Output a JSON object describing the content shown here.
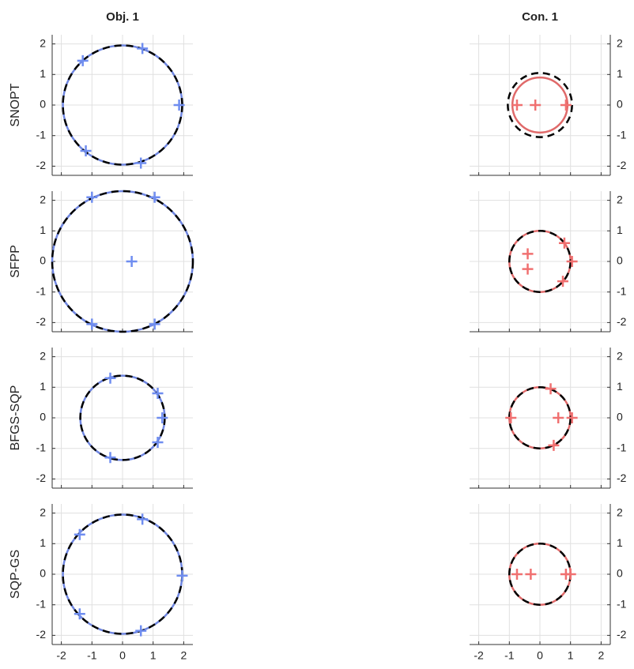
{
  "chart_data": [
    {
      "type": "scatter",
      "title": "Obj. 1",
      "ylabel": "SNOPT",
      "color": "#6f86e0",
      "marker_color": "#6f8df0",
      "x": [
        -1.3,
        0.65,
        1.85,
        -1.2,
        0.6
      ],
      "y": [
        1.45,
        1.85,
        0,
        -1.5,
        -1.9
      ],
      "contour_radius": 1.95,
      "boundary_radius": 1.95,
      "xlim": [
        -2.3,
        2.3
      ],
      "ylim": [
        -2.3,
        2.3
      ],
      "xticks": [
        -2,
        -1,
        0,
        1,
        2
      ],
      "yticks": [
        -2,
        -1,
        0,
        1,
        2
      ],
      "grid": true,
      "y_axis_side": "left",
      "x_tick_labels": false
    },
    {
      "type": "scatter",
      "title": "Con. 1",
      "color": "#e06a6a",
      "marker_color": "#f07070",
      "x": [
        -0.75,
        -0.15,
        0.85
      ],
      "y": [
        0,
        0,
        0
      ],
      "contour_radius": 0.9,
      "boundary_radius": 1.05,
      "xlim": [
        -2.3,
        2.3
      ],
      "ylim": [
        -2.3,
        2.3
      ],
      "xticks": [
        -2,
        -1,
        0,
        1,
        2
      ],
      "yticks": [
        -2,
        -1,
        0,
        1,
        2
      ],
      "grid": true,
      "y_axis_side": "right",
      "x_tick_labels": false
    },
    {
      "type": "scatter",
      "ylabel": "SFPP",
      "color": "#6f86e0",
      "marker_color": "#6f8df0",
      "x": [
        -1,
        1.05,
        0.3,
        -1,
        1.05
      ],
      "y": [
        2.1,
        2.1,
        0,
        -2.05,
        -2.05
      ],
      "contour_radius": 2.3,
      "boundary_radius": 2.3,
      "xlim": [
        -2.3,
        2.3
      ],
      "ylim": [
        -2.3,
        2.3
      ],
      "xticks": [
        -2,
        -1,
        0,
        1,
        2
      ],
      "yticks": [
        -2,
        -1,
        0,
        1,
        2
      ],
      "grid": true,
      "y_axis_side": "left",
      "x_tick_labels": false
    },
    {
      "type": "scatter",
      "color": "#e06a6a",
      "marker_color": "#f07070",
      "x": [
        0.8,
        1.05,
        0.75,
        -0.4,
        -0.4
      ],
      "y": [
        0.6,
        0,
        -0.65,
        0.25,
        -0.25
      ],
      "contour_radius": 1.0,
      "boundary_radius": 1.0,
      "xlim": [
        -2.3,
        2.3
      ],
      "ylim": [
        -2.3,
        2.3
      ],
      "xticks": [
        -2,
        -1,
        0,
        1,
        2
      ],
      "yticks": [
        -2,
        -1,
        0,
        1,
        2
      ],
      "grid": true,
      "y_axis_side": "right",
      "x_tick_labels": false
    },
    {
      "type": "scatter",
      "ylabel": "BFGS-SQP",
      "color": "#6f86e0",
      "marker_color": "#6f8df0",
      "x": [
        -0.4,
        1.15,
        1.3,
        1.15,
        -0.4
      ],
      "y": [
        1.3,
        0.8,
        0,
        -0.8,
        -1.3
      ],
      "contour_radius": 1.38,
      "boundary_radius": 1.38,
      "xlim": [
        -2.3,
        2.3
      ],
      "ylim": [
        -2.3,
        2.3
      ],
      "xticks": [
        -2,
        -1,
        0,
        1,
        2
      ],
      "yticks": [
        -2,
        -1,
        0,
        1,
        2
      ],
      "grid": true,
      "y_axis_side": "left",
      "x_tick_labels": false
    },
    {
      "type": "scatter",
      "color": "#e06a6a",
      "marker_color": "#f07070",
      "x": [
        0.35,
        -0.95,
        0.6,
        1.05,
        0.45
      ],
      "y": [
        0.95,
        0,
        0,
        0,
        -0.9
      ],
      "contour_radius": 1.0,
      "boundary_radius": 1.0,
      "xlim": [
        -2.3,
        2.3
      ],
      "ylim": [
        -2.3,
        2.3
      ],
      "xticks": [
        -2,
        -1,
        0,
        1,
        2
      ],
      "yticks": [
        -2,
        -1,
        0,
        1,
        2
      ],
      "grid": true,
      "y_axis_side": "right",
      "x_tick_labels": false
    },
    {
      "type": "scatter",
      "ylabel": "SQP-GS",
      "color": "#6f86e0",
      "marker_color": "#6f8df0",
      "x": [
        -1.4,
        0.65,
        1.95,
        -1.4,
        0.6
      ],
      "y": [
        1.3,
        1.8,
        -0.05,
        -1.3,
        -1.85
      ],
      "contour_radius": 1.95,
      "boundary_radius": 1.95,
      "xlim": [
        -2.3,
        2.3
      ],
      "ylim": [
        -2.3,
        2.3
      ],
      "xticks": [
        -2,
        -1,
        0,
        1,
        2
      ],
      "yticks": [
        -2,
        -1,
        0,
        1,
        2
      ],
      "grid": true,
      "y_axis_side": "left",
      "x_tick_labels": true
    },
    {
      "type": "scatter",
      "color": "#e06a6a",
      "marker_color": "#f07070",
      "x": [
        -0.75,
        -0.3,
        0.85,
        1.0
      ],
      "y": [
        0,
        0,
        0,
        0
      ],
      "contour_radius": 1.0,
      "boundary_radius": 1.0,
      "xlim": [
        -2.3,
        2.3
      ],
      "ylim": [
        -2.3,
        2.3
      ],
      "xticks": [
        -2,
        -1,
        0,
        1,
        2
      ],
      "yticks": [
        -2,
        -1,
        0,
        1,
        2
      ],
      "grid": true,
      "y_axis_side": "right",
      "x_tick_labels": true
    }
  ]
}
